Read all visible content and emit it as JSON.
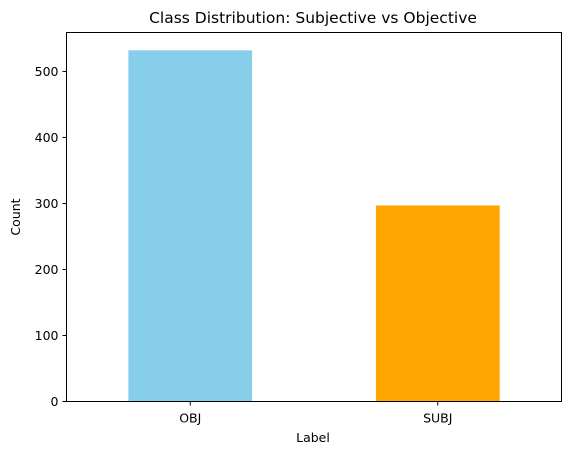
{
  "chart_data": {
    "type": "bar",
    "title": "Class Distribution: Subjective vs Objective",
    "xlabel": "Label",
    "ylabel": "Count",
    "categories": [
      "OBJ",
      "SUBJ"
    ],
    "values": [
      532,
      297
    ],
    "colors": [
      "#87CEEB",
      "#FFA500"
    ],
    "ylim": [
      0,
      559
    ],
    "yticks": [
      0,
      100,
      200,
      300,
      400,
      500
    ],
    "grid": false,
    "legend": "none"
  }
}
